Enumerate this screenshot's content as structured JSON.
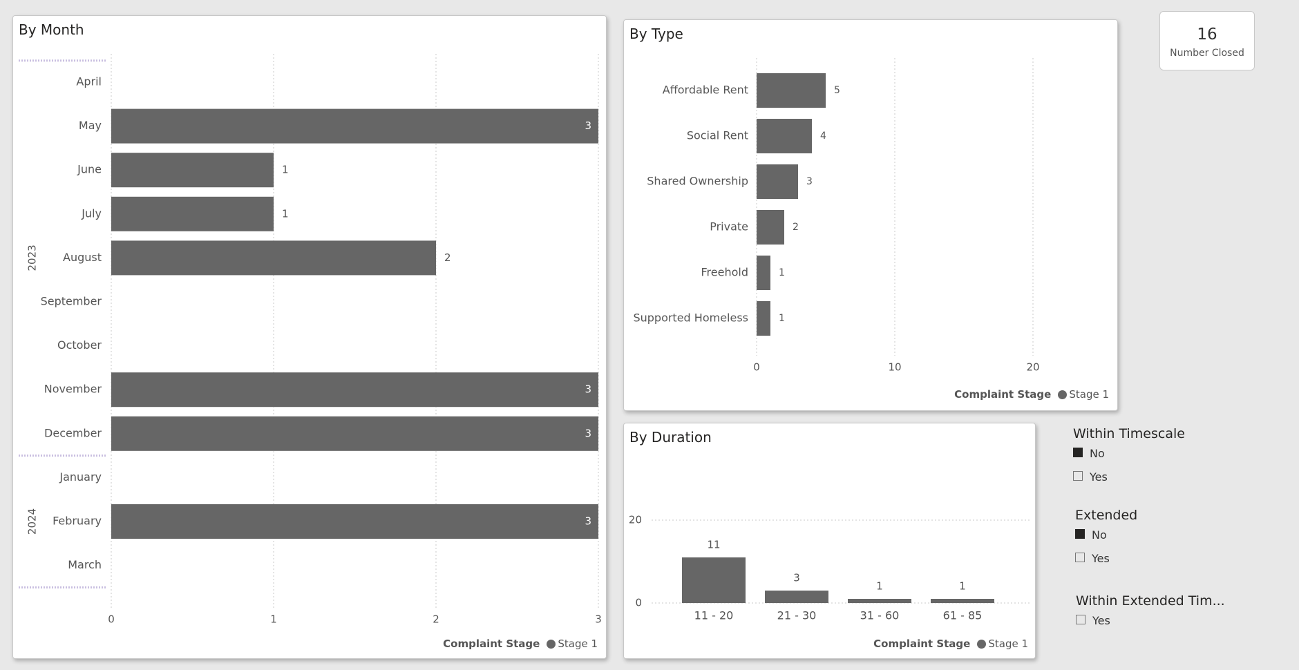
{
  "panels": {
    "by_month": {
      "title": "By Month",
      "legend_title": "Complaint Stage",
      "legend_item": "Stage 1"
    },
    "by_type": {
      "title": "By Type",
      "legend_title": "Complaint Stage",
      "legend_item": "Stage 1"
    },
    "by_duration": {
      "title": "By Duration",
      "legend_title": "Complaint Stage",
      "legend_item": "Stage 1"
    }
  },
  "card": {
    "value": "16",
    "label": "Number Closed"
  },
  "slicers": [
    {
      "title": "Within Timescale",
      "options": [
        {
          "label": "No",
          "checked": true
        },
        {
          "label": "Yes",
          "checked": false
        }
      ]
    },
    {
      "title": "Extended",
      "options": [
        {
          "label": "No",
          "checked": true
        },
        {
          "label": "Yes",
          "checked": false
        }
      ]
    },
    {
      "title": "Within Extended Tim...",
      "options": [
        {
          "label": "Yes",
          "checked": false
        }
      ]
    }
  ],
  "colors": {
    "bar": "#666666",
    "background": "#e8e8e8",
    "panel": "#ffffff"
  },
  "chart_data": [
    {
      "type": "bar",
      "orientation": "horizontal",
      "title": "By Month",
      "groups": [
        {
          "label": "2023",
          "categories": [
            "April",
            "May",
            "June",
            "July",
            "August",
            "September",
            "October",
            "November",
            "December"
          ]
        },
        {
          "label": "2024",
          "categories": [
            "January",
            "February",
            "March"
          ]
        }
      ],
      "categories": [
        "April",
        "May",
        "June",
        "July",
        "August",
        "September",
        "October",
        "November",
        "December",
        "January",
        "February",
        "March"
      ],
      "values": [
        0,
        3,
        1,
        1,
        2,
        0,
        0,
        3,
        3,
        0,
        3,
        0
      ],
      "series": [
        {
          "name": "Stage 1",
          "values": [
            0,
            3,
            1,
            1,
            2,
            0,
            0,
            3,
            3,
            0,
            3,
            0
          ]
        }
      ],
      "xlim": [
        0,
        3
      ],
      "xticks": [
        "0",
        "1",
        "2",
        "3"
      ],
      "legend_title": "Complaint Stage",
      "legend": "bottom-right",
      "grid": true
    },
    {
      "type": "bar",
      "orientation": "horizontal",
      "title": "By Type",
      "categories": [
        "Affordable Rent",
        "Social Rent",
        "Shared Ownership",
        "Private",
        "Freehold",
        "Supported Homeless"
      ],
      "values": [
        5,
        4,
        3,
        2,
        1,
        1
      ],
      "series": [
        {
          "name": "Stage 1",
          "values": [
            5,
            4,
            3,
            2,
            1,
            1
          ]
        }
      ],
      "xlim": [
        0,
        24
      ],
      "xticks": [
        "0",
        "10",
        "20"
      ],
      "legend_title": "Complaint Stage",
      "legend": "bottom-right",
      "grid": true
    },
    {
      "type": "bar",
      "orientation": "vertical",
      "title": "By Duration",
      "categories": [
        "11 - 20",
        "21 - 30",
        "31 - 60",
        "61 - 85"
      ],
      "values": [
        11,
        3,
        1,
        1
      ],
      "series": [
        {
          "name": "Stage 1",
          "values": [
            11,
            3,
            1,
            1
          ]
        }
      ],
      "ylim": [
        0,
        25
      ],
      "yticks": [
        "0",
        "20"
      ],
      "legend_title": "Complaint Stage",
      "legend": "bottom-right",
      "grid": true
    }
  ]
}
